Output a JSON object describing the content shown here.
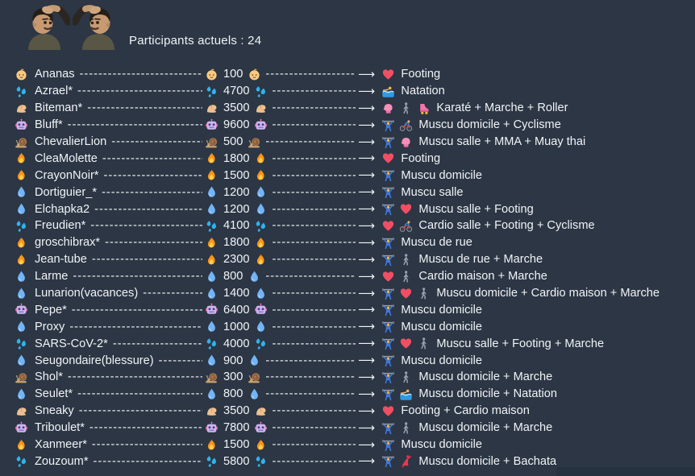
{
  "colors": {
    "background": "#2c3644",
    "text": "#f1f4f7",
    "bottom_strip": "#273240"
  },
  "header": {
    "participants_label": "Participants actuels : 24",
    "stickers": [
      {
        "name": "risitas-sticker"
      },
      {
        "name": "risitas-sticker-mirrored"
      }
    ]
  },
  "list": {
    "dash_fill": "--------------------------------------------------------------------------------",
    "arrow": "⟶",
    "rows": [
      {
        "icon": "baby",
        "name": "Ananas",
        "value": "100",
        "activity_icons": [
          "heart"
        ],
        "activities": "Footing"
      },
      {
        "icon": "sweat-droplets",
        "name": "Azrael*",
        "value": "4700",
        "activity_icons": [
          "swimmer"
        ],
        "activities": "Natation"
      },
      {
        "icon": "biceps",
        "name": "Biteman*",
        "value": "3500",
        "activity_icons": [
          "boxing-glove",
          "walker",
          "roller-skate"
        ],
        "activities": "Karaté + Marche + Roller"
      },
      {
        "icon": "robot",
        "name": "Bluff*",
        "value": "9600",
        "activity_icons": [
          "lifter",
          "cyclist"
        ],
        "activities": "Muscu domicile + Cyclisme"
      },
      {
        "icon": "snail",
        "name": "ChevalierLion",
        "value": "500",
        "activity_icons": [
          "lifter",
          "boxing-glove"
        ],
        "activities": "Muscu salle + MMA + Muay thai"
      },
      {
        "icon": "fire",
        "name": "CleaMolette",
        "value": "1800",
        "activity_icons": [
          "heart"
        ],
        "activities": "Footing"
      },
      {
        "icon": "fire",
        "name": "CrayonNoir*",
        "value": "1500",
        "activity_icons": [
          "lifter"
        ],
        "activities": "Muscu domicile"
      },
      {
        "icon": "droplet",
        "name": "Dortiguier_*",
        "value": "1200",
        "activity_icons": [
          "lifter"
        ],
        "activities": "Muscu salle"
      },
      {
        "icon": "droplet",
        "name": "Elchapka2",
        "value": "1200",
        "activity_icons": [
          "lifter",
          "heart"
        ],
        "activities": "Muscu salle + Footing"
      },
      {
        "icon": "sweat-droplets",
        "name": "Freudien*",
        "value": "4100",
        "activity_icons": [
          "heart",
          "cyclist"
        ],
        "activities": "Cardio salle + Footing + Cyclisme"
      },
      {
        "icon": "fire",
        "name": "groschibrax*",
        "value": "1800",
        "activity_icons": [
          "lifter"
        ],
        "activities": "Muscu de rue"
      },
      {
        "icon": "fire",
        "name": "Jean-tube",
        "value": "2300",
        "activity_icons": [
          "lifter",
          "walker"
        ],
        "activities": "Muscu de rue + Marche"
      },
      {
        "icon": "droplet",
        "name": "Larme",
        "value": "800",
        "activity_icons": [
          "heart",
          "walker"
        ],
        "activities": "Cardio maison + Marche"
      },
      {
        "icon": "droplet",
        "name": "Lunarion(vacances)",
        "value": "1400",
        "activity_icons": [
          "lifter",
          "heart",
          "walker"
        ],
        "activities": "Muscu domicile + Cardio maison + Marche"
      },
      {
        "icon": "robot",
        "name": "Pepe*",
        "value": "6400",
        "activity_icons": [
          "lifter"
        ],
        "activities": "Muscu domicile"
      },
      {
        "icon": "droplet",
        "name": "Proxy",
        "value": "1000",
        "activity_icons": [
          "lifter"
        ],
        "activities": "Muscu domicile"
      },
      {
        "icon": "sweat-droplets",
        "name": "SARS-CoV-2*",
        "value": "4000",
        "activity_icons": [
          "lifter",
          "heart",
          "walker"
        ],
        "activities": "Muscu salle + Footing + Marche"
      },
      {
        "icon": "droplet",
        "name": "Seugondaire(blessure)",
        "value": "900",
        "activity_icons": [
          "lifter"
        ],
        "activities": "Muscu domicile"
      },
      {
        "icon": "snail",
        "name": "Shol*",
        "value": "300",
        "activity_icons": [
          "lifter",
          "walker"
        ],
        "activities": "Muscu domicile + Marche"
      },
      {
        "icon": "droplet",
        "name": "Seulet*",
        "value": "800",
        "activity_icons": [
          "lifter",
          "swimmer"
        ],
        "activities": "Muscu domicile + Natation"
      },
      {
        "icon": "biceps",
        "name": "Sneaky",
        "value": "3500",
        "activity_icons": [
          "heart"
        ],
        "activities": "Footing + Cardio maison"
      },
      {
        "icon": "robot",
        "name": "Triboulet*",
        "value": "7800",
        "activity_icons": [
          "lifter",
          "walker"
        ],
        "activities": "Muscu domicile + Marche"
      },
      {
        "icon": "fire",
        "name": "Xanmeer*",
        "value": "1500",
        "activity_icons": [
          "lifter"
        ],
        "activities": "Muscu domicile"
      },
      {
        "icon": "sweat-droplets",
        "name": "Zouzoum*",
        "value": "5800",
        "activity_icons": [
          "lifter",
          "dancer"
        ],
        "activities": "Muscu domicile + Bachata"
      }
    ]
  }
}
